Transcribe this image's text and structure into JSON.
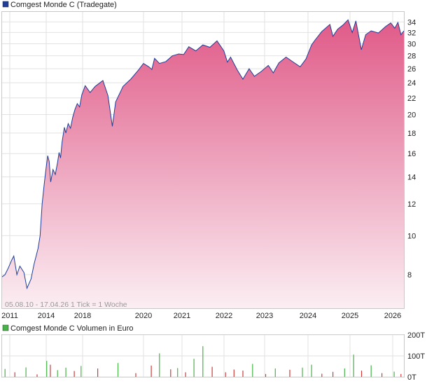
{
  "chart_data": [
    {
      "type": "area",
      "title": "Comgest Monde C (Tradegate)",
      "legend_color": "#1f3d99",
      "line_color": "#1f3d99",
      "fill_top_color": "#e05a88",
      "fill_bottom_color": "#fbeef3",
      "y_scale": "log",
      "ylim": [
        6.6,
        36
      ],
      "y_ticks": [
        8,
        10,
        12,
        14,
        16,
        18,
        20,
        22,
        24,
        26,
        28,
        30,
        32,
        34
      ],
      "x_tick_labels": [
        "2011",
        "2014",
        "2018",
        "2020",
        "2021",
        "2022",
        "2023",
        "2024",
        "2025",
        "2026"
      ],
      "x_tick_dates": [
        "2011-01-01",
        "2014-01-01",
        "2018-01-01",
        "2020-01-01",
        "2021-01-01",
        "2022-01-01",
        "2023-01-01",
        "2024-01-01",
        "2025-01-01",
        "2026-01-01"
      ],
      "range_note": "05.08.10 - 17.04.26   1 Tick = 1 Woche",
      "grid": true,
      "x": [
        "2010-08-05",
        "2010-10-01",
        "2010-12-01",
        "2011-03-01",
        "2011-05-01",
        "2011-08-01",
        "2011-11-01",
        "2012-03-01",
        "2012-06-01",
        "2012-10-01",
        "2013-01-01",
        "2013-05-01",
        "2013-07-01",
        "2013-09-01",
        "2013-11-01",
        "2014-01-01",
        "2014-03-01",
        "2014-05-01",
        "2014-07-01",
        "2014-10-01",
        "2015-01-01",
        "2015-04-01",
        "2015-06-01",
        "2015-08-01",
        "2015-10-01",
        "2016-01-01",
        "2016-03-01",
        "2016-06-01",
        "2016-09-01",
        "2016-12-01",
        "2017-03-01",
        "2017-06-01",
        "2017-09-01",
        "2017-12-01",
        "2018-02-01",
        "2018-04-01",
        "2018-06-01",
        "2018-09-01",
        "2018-11-01",
        "2018-12-24",
        "2019-02-01",
        "2019-05-01",
        "2019-08-01",
        "2019-11-01",
        "2020-01-01",
        "2020-02-20",
        "2020-03-20",
        "2020-04-15",
        "2020-06-01",
        "2020-08-01",
        "2020-10-01",
        "2020-12-01",
        "2021-01-15",
        "2021-03-01",
        "2021-05-01",
        "2021-07-01",
        "2021-09-01",
        "2021-11-01",
        "2021-12-31",
        "2022-02-01",
        "2022-03-01",
        "2022-05-01",
        "2022-06-20",
        "2022-08-15",
        "2022-10-01",
        "2022-12-01",
        "2023-02-01",
        "2023-03-15",
        "2023-05-01",
        "2023-07-01",
        "2023-08-15",
        "2023-10-27",
        "2023-12-15",
        "2024-02-01",
        "2024-03-01",
        "2024-05-01",
        "2024-07-10",
        "2024-08-05",
        "2024-09-15",
        "2024-11-01",
        "2024-12-15",
        "2025-01-20",
        "2025-02-20",
        "2025-04-08",
        "2025-05-15",
        "2025-07-01",
        "2025-09-01",
        "2025-11-01",
        "2025-12-15",
        "2026-01-20",
        "2026-02-20",
        "2026-03-20",
        "2026-04-17"
      ],
      "values": [
        7.9,
        8.0,
        8.3,
        8.7,
        8.9,
        8.0,
        8.4,
        8.1,
        7.4,
        7.8,
        8.5,
        9.3,
        10.0,
        12.0,
        13.4,
        14.8,
        15.8,
        15.3,
        13.6,
        14.6,
        14.2,
        15.2,
        16.1,
        15.6,
        17.1,
        18.6,
        18.0,
        19.0,
        18.5,
        19.7,
        20.6,
        21.3,
        20.9,
        22.4,
        23.6,
        22.7,
        23.5,
        24.3,
        22.3,
        18.7,
        21.5,
        23.5,
        24.5,
        25.8,
        26.8,
        26.3,
        25.9,
        27.6,
        26.8,
        27.1,
        28.0,
        28.3,
        28.2,
        29.5,
        28.8,
        29.8,
        29.4,
        30.5,
        28.8,
        27.0,
        27.8,
        25.8,
        24.5,
        26.0,
        24.9,
        25.6,
        26.5,
        25.4,
        26.9,
        27.8,
        27.2,
        26.3,
        27.5,
        29.8,
        30.6,
        32.2,
        33.5,
        31.3,
        32.6,
        33.4,
        34.4,
        32.0,
        34.2,
        29.0,
        31.6,
        32.3,
        31.9,
        33.1,
        33.8,
        32.8,
        33.9,
        31.6,
        32.3
      ]
    },
    {
      "type": "bar",
      "title": "Comgest Monde C Volumen in Euro",
      "legend_color": "#46b546",
      "up_color": "#46b546",
      "down_color": "#d03a3a",
      "ylim": [
        0,
        200
      ],
      "y_ticks": [
        0,
        100,
        200
      ],
      "y_tick_labels": [
        "0T",
        "100T",
        "200T"
      ],
      "x": [
        "2010-10-01",
        "2011-06-01",
        "2012-05-01",
        "2013-04-01",
        "2014-01-20",
        "2014-06-15",
        "2015-04-01",
        "2016-03-01",
        "2017-02-01",
        "2017-11-01",
        "2018-07-01",
        "2019-03-01",
        "2019-10-01",
        "2020-03-15",
        "2020-06-01",
        "2020-09-15",
        "2020-11-20",
        "2021-02-01",
        "2021-04-15",
        "2021-07-01",
        "2021-09-20",
        "2022-01-15",
        "2022-04-01",
        "2022-06-20",
        "2022-09-15",
        "2023-01-10",
        "2023-04-01",
        "2023-08-01",
        "2023-11-15",
        "2024-02-01",
        "2024-05-01",
        "2024-08-05",
        "2024-11-15",
        "2025-02-01",
        "2025-04-10",
        "2025-07-01",
        "2025-10-01",
        "2026-01-15",
        "2026-03-20"
      ],
      "values": [
        38,
        22,
        45,
        12,
        76,
        58,
        32,
        44,
        28,
        52,
        40,
        66,
        18,
        54,
        112,
        36,
        42,
        22,
        86,
        146,
        48,
        22,
        35,
        30,
        62,
        14,
        40,
        34,
        44,
        58,
        15,
        24,
        40,
        106,
        30,
        55,
        18,
        25,
        14
      ],
      "direction": [
        "up",
        "down",
        "up",
        "down",
        "up",
        "down",
        "up",
        "up",
        "down",
        "up",
        "down",
        "up",
        "down",
        "down",
        "up",
        "down",
        "up",
        "down",
        "up",
        "up",
        "down",
        "down",
        "down",
        "down",
        "up",
        "down",
        "up",
        "down",
        "up",
        "up",
        "down",
        "down",
        "up",
        "up",
        "down",
        "up",
        "down",
        "up",
        "down"
      ]
    }
  ]
}
